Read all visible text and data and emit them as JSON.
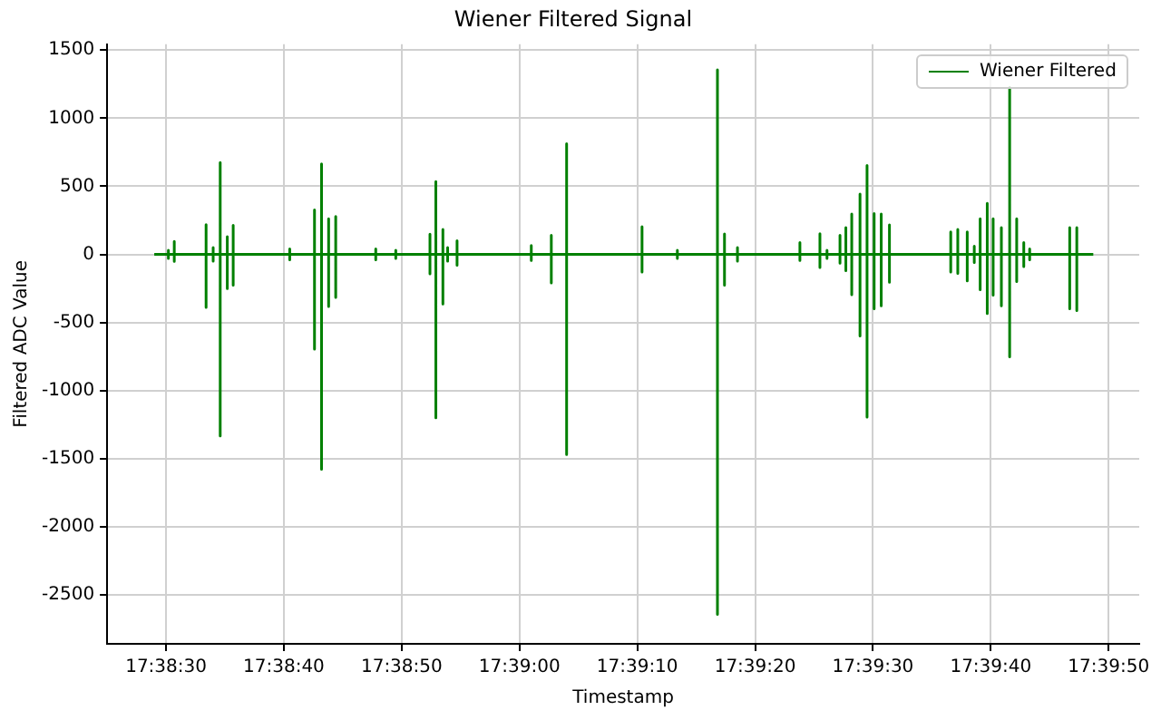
{
  "chart_data": {
    "type": "line",
    "title": "Wiener Filtered Signal",
    "xlabel": "Timestamp",
    "ylabel": "Filtered ADC Value",
    "xlim": [
      17.640278,
      17.664611
    ],
    "xticks": [
      {
        "value": 17.641667,
        "label": "17:38:30"
      },
      {
        "value": 17.644444,
        "label": "17:38:40"
      },
      {
        "value": 17.647222,
        "label": "17:38:50"
      },
      {
        "value": 17.65,
        "label": "17:39:00"
      },
      {
        "value": 17.652778,
        "label": "17:39:10"
      },
      {
        "value": 17.655556,
        "label": "17:39:20"
      },
      {
        "value": 17.658333,
        "label": "17:39:30"
      },
      {
        "value": 17.661111,
        "label": "17:39:40"
      },
      {
        "value": 17.663889,
        "label": "17:39:50"
      }
    ],
    "ylim": [
      -2860,
      1543
    ],
    "yticks": [
      -2500,
      -2000,
      -1500,
      -1000,
      -500,
      0,
      500,
      1000,
      1500
    ],
    "grid": true,
    "legend": "top right",
    "marker": "none",
    "line_style": "solid",
    "series": [
      {
        "name": "Wiener Filtered",
        "color": "#008000",
        "x": [
          17.641389,
          17.641722,
          17.641722,
          17.641722,
          17.641722,
          17.641861,
          17.641861,
          17.641861,
          17.641861,
          17.642611,
          17.642611,
          17.642611,
          17.642611,
          17.642778,
          17.642778,
          17.642778,
          17.642778,
          17.642944,
          17.642944,
          17.642944,
          17.642944,
          17.643111,
          17.643111,
          17.643111,
          17.643111,
          17.64325,
          17.64325,
          17.64325,
          17.64325,
          17.644583,
          17.644583,
          17.644583,
          17.644583,
          17.645167,
          17.645167,
          17.645167,
          17.645167,
          17.645333,
          17.645333,
          17.645333,
          17.645333,
          17.6455,
          17.6455,
          17.6455,
          17.6455,
          17.645667,
          17.645667,
          17.645667,
          17.645667,
          17.646611,
          17.646611,
          17.646611,
          17.646611,
          17.647083,
          17.647083,
          17.647083,
          17.647083,
          17.647889,
          17.647889,
          17.647889,
          17.647889,
          17.648028,
          17.648028,
          17.648028,
          17.648028,
          17.648194,
          17.648194,
          17.648194,
          17.648194,
          17.648306,
          17.648306,
          17.648306,
          17.648306,
          17.648528,
          17.648528,
          17.648528,
          17.648528,
          17.650278,
          17.650278,
          17.650278,
          17.650278,
          17.65075,
          17.65075,
          17.65075,
          17.65075,
          17.651111,
          17.651111,
          17.651111,
          17.651111,
          17.652889,
          17.652889,
          17.652889,
          17.652889,
          17.653722,
          17.653722,
          17.653722,
          17.653722,
          17.654667,
          17.654667,
          17.654667,
          17.654667,
          17.654833,
          17.654833,
          17.654833,
          17.654833,
          17.655139,
          17.655139,
          17.655139,
          17.655139,
          17.656611,
          17.656611,
          17.656611,
          17.656611,
          17.657083,
          17.657083,
          17.657083,
          17.657083,
          17.65725,
          17.65725,
          17.65725,
          17.65725,
          17.657556,
          17.657556,
          17.657556,
          17.657556,
          17.657694,
          17.657694,
          17.657694,
          17.657694,
          17.657833,
          17.657833,
          17.657833,
          17.657833,
          17.658028,
          17.658028,
          17.658028,
          17.658028,
          17.658194,
          17.658194,
          17.658194,
          17.658194,
          17.658361,
          17.658361,
          17.658361,
          17.658361,
          17.658528,
          17.658528,
          17.658528,
          17.658528,
          17.658722,
          17.658722,
          17.658722,
          17.658722,
          17.660167,
          17.660167,
          17.660167,
          17.660167,
          17.660333,
          17.660333,
          17.660333,
          17.660333,
          17.660556,
          17.660556,
          17.660556,
          17.660556,
          17.660722,
          17.660722,
          17.660722,
          17.660722,
          17.660861,
          17.660861,
          17.660861,
          17.660861,
          17.661028,
          17.661028,
          17.661028,
          17.661028,
          17.661167,
          17.661167,
          17.661167,
          17.661167,
          17.661361,
          17.661361,
          17.661361,
          17.661361,
          17.661556,
          17.661556,
          17.661556,
          17.661556,
          17.661722,
          17.661722,
          17.661722,
          17.661722,
          17.661889,
          17.661889,
          17.661889,
          17.661889,
          17.662028,
          17.662028,
          17.662028,
          17.662028,
          17.662972,
          17.662972,
          17.662972,
          17.662972,
          17.663139,
          17.663139,
          17.663139,
          17.663139,
          17.663528
        ],
        "values": [
          0,
          0,
          30,
          -30,
          0,
          0,
          95,
          -52,
          0,
          0,
          218,
          -390,
          0,
          0,
          50,
          -50,
          0,
          0,
          674,
          -1334,
          0,
          0,
          130,
          -252,
          0,
          0,
          213,
          -226,
          0,
          0,
          40,
          -40,
          0,
          0,
          326,
          -695,
          0,
          0,
          665,
          -1578,
          0,
          0,
          261,
          -383,
          0,
          0,
          278,
          -317,
          0,
          0,
          40,
          -40,
          0,
          0,
          30,
          -30,
          0,
          0,
          148,
          -143,
          0,
          0,
          535,
          -1200,
          0,
          0,
          183,
          -365,
          0,
          0,
          50,
          -50,
          0,
          0,
          100,
          -80,
          0,
          0,
          65,
          -45,
          0,
          0,
          140,
          -209,
          0,
          0,
          812,
          -1470,
          0,
          0,
          204,
          -130,
          0,
          0,
          30,
          -30,
          0,
          0,
          1356,
          -2643,
          0,
          0,
          150,
          -226,
          0,
          0,
          50,
          -50,
          0,
          0,
          87,
          -45,
          0,
          0,
          152,
          -96,
          0,
          0,
          30,
          -30,
          0,
          0,
          140,
          -65,
          0,
          0,
          196,
          -120,
          0,
          0,
          296,
          -296,
          0,
          0,
          443,
          -600,
          0,
          0,
          652,
          -1195,
          0,
          0,
          300,
          -400,
          0,
          0,
          296,
          -378,
          0,
          0,
          217,
          -204,
          0,
          0,
          165,
          -130,
          0,
          0,
          183,
          -140,
          0,
          0,
          165,
          -195,
          0,
          0,
          60,
          -60,
          0,
          0,
          261,
          -260,
          0,
          0,
          374,
          -435,
          0,
          0,
          261,
          -300,
          0,
          0,
          196,
          -378,
          0,
          0,
          1225,
          -752,
          0,
          0,
          261,
          -200,
          0,
          0,
          87,
          -90,
          0,
          0,
          40,
          -40,
          0,
          0,
          196,
          -400,
          0,
          0,
          196,
          -413,
          0,
          0
        ]
      }
    ]
  }
}
